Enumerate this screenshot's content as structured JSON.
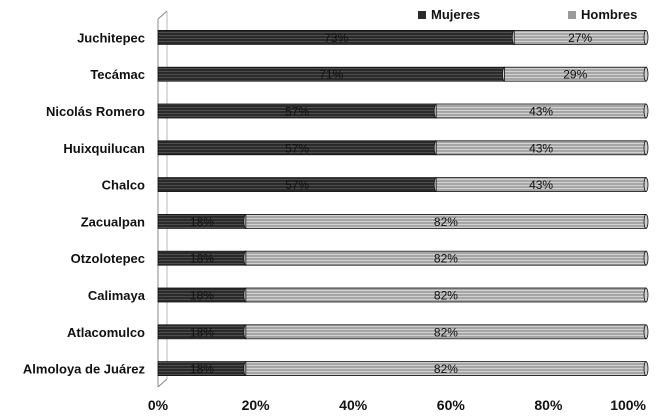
{
  "chart_data": {
    "type": "bar",
    "stacked": "percent",
    "orientation": "horizontal",
    "categories": [
      "Juchitepec",
      "Tecámac",
      "Nicolás Romero",
      "Huixquilucan",
      "Chalco",
      "Zacualpan",
      "Otzolotepec",
      "Calimaya",
      "Atlacomulco",
      "Almoloya de Juárez"
    ],
    "series": [
      {
        "name": "Mujeres",
        "values": [
          73,
          71,
          57,
          57,
          57,
          18,
          18,
          18,
          18,
          18
        ],
        "labels": [
          "73%",
          "71%",
          "57%",
          "57%",
          "57%",
          "18%",
          "18%",
          "18%",
          "18%",
          "18%"
        ],
        "color": "#2a2a2a"
      },
      {
        "name": "Hombres",
        "values": [
          27,
          29,
          43,
          43,
          43,
          82,
          82,
          82,
          82,
          82
        ],
        "labels": [
          "27%",
          "29%",
          "43%",
          "43%",
          "43%",
          "82%",
          "82%",
          "82%",
          "82%",
          "82%"
        ],
        "color": "#9a9a9a"
      }
    ],
    "x_ticks": [
      "0%",
      "20%",
      "40%",
      "60%",
      "80%",
      "100%"
    ],
    "xlim": [
      0,
      100
    ],
    "legend_position": "top-right",
    "grid": false
  }
}
